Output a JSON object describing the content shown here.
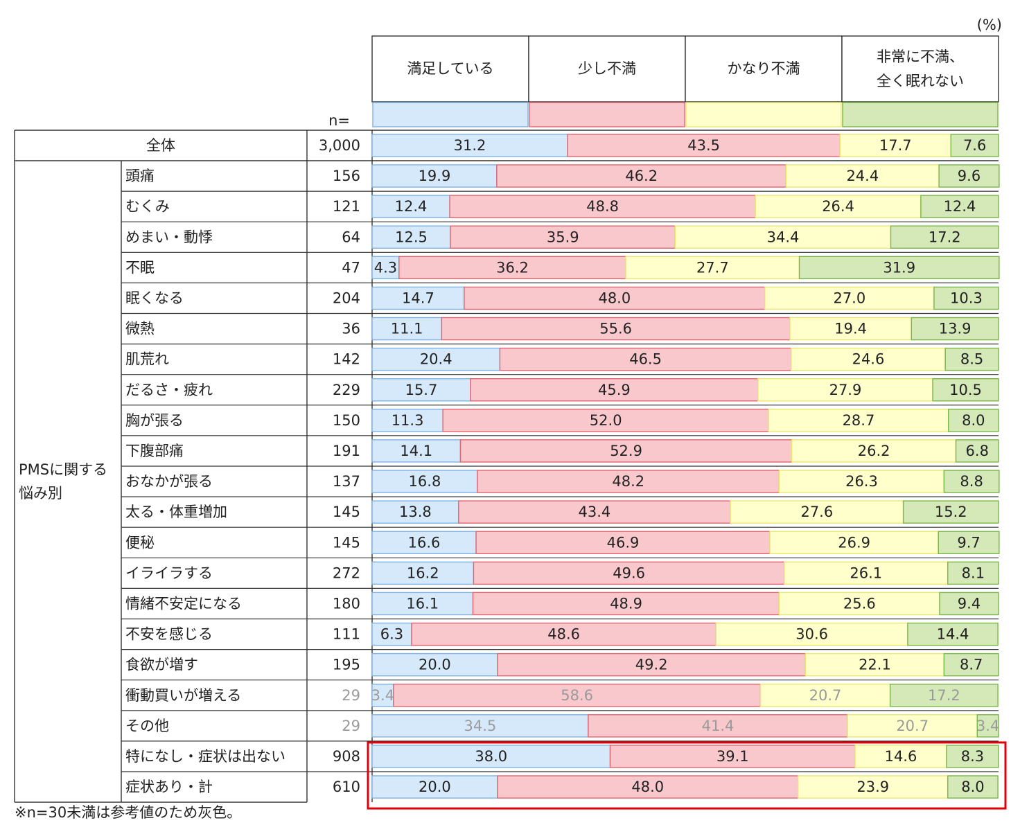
{
  "unit": "(%)",
  "n_label": "n=",
  "footnote": "※n=30未満は参考値のため灰色。",
  "group_label_lines": [
    "PMSに関する",
    "悩み別"
  ],
  "colors": {
    "satisfied": "#d6e9fb",
    "slightly": "#f9c8cd",
    "quite": "#ffffcc",
    "very": "#d4e8b8",
    "satisfied_edge": "#7fb2e5",
    "slightly_edge": "#e3636f",
    "quite_edge": "#e8e870",
    "very_edge": "#7ab648",
    "highlight": "#e0000a",
    "muted_text": "#9a9a9a"
  },
  "chart_data": {
    "type": "bar",
    "orientation": "horizontal",
    "stacked": true,
    "xlim": [
      0,
      100
    ],
    "series": [
      {
        "name": "満足している",
        "color": "#d6e9fb"
      },
      {
        "name": "少し不満",
        "color": "#f9c8cd"
      },
      {
        "name": "かなり不満",
        "color": "#ffffcc"
      },
      {
        "name": "非常に不満、全く眠れない",
        "color": "#d4e8b8"
      }
    ],
    "total_row": {
      "label": "全体",
      "n": "3,000",
      "values": [
        31.2,
        43.5,
        17.7,
        7.6
      ]
    },
    "rows": [
      {
        "label": "頭痛",
        "n": "156",
        "values": [
          19.9,
          46.2,
          24.4,
          9.6
        ]
      },
      {
        "label": "むくみ",
        "n": "121",
        "values": [
          12.4,
          48.8,
          26.4,
          12.4
        ]
      },
      {
        "label": "めまい・動悸",
        "n": "64",
        "values": [
          12.5,
          35.9,
          34.4,
          17.2
        ]
      },
      {
        "label": "不眠",
        "n": "47",
        "values": [
          4.3,
          36.2,
          27.7,
          31.9
        ]
      },
      {
        "label": "眠くなる",
        "n": "204",
        "values": [
          14.7,
          48.0,
          27.0,
          10.3
        ]
      },
      {
        "label": "微熱",
        "n": "36",
        "values": [
          11.1,
          55.6,
          19.4,
          13.9
        ]
      },
      {
        "label": "肌荒れ",
        "n": "142",
        "values": [
          20.4,
          46.5,
          24.6,
          8.5
        ]
      },
      {
        "label": "だるさ・疲れ",
        "n": "229",
        "values": [
          15.7,
          45.9,
          27.9,
          10.5
        ]
      },
      {
        "label": "胸が張る",
        "n": "150",
        "values": [
          11.3,
          52.0,
          28.7,
          8.0
        ]
      },
      {
        "label": "下腹部痛",
        "n": "191",
        "values": [
          14.1,
          52.9,
          26.2,
          6.8
        ]
      },
      {
        "label": "おなかが張る",
        "n": "137",
        "values": [
          16.8,
          48.2,
          26.3,
          8.8
        ]
      },
      {
        "label": "太る・体重増加",
        "n": "145",
        "values": [
          13.8,
          43.4,
          27.6,
          15.2
        ]
      },
      {
        "label": "便秘",
        "n": "145",
        "values": [
          16.6,
          46.9,
          26.9,
          9.7
        ]
      },
      {
        "label": "イライラする",
        "n": "272",
        "values": [
          16.2,
          49.6,
          26.1,
          8.1
        ]
      },
      {
        "label": "情緒不安定になる",
        "n": "180",
        "values": [
          16.1,
          48.9,
          25.6,
          9.4
        ]
      },
      {
        "label": "不安を感じる",
        "n": "111",
        "values": [
          6.3,
          48.6,
          30.6,
          14.4
        ]
      },
      {
        "label": "食欲が増す",
        "n": "195",
        "values": [
          20.0,
          49.2,
          22.1,
          8.7
        ]
      },
      {
        "label": "衝動買いが増える",
        "n": "29",
        "values": [
          3.4,
          58.6,
          20.7,
          17.2
        ],
        "muted": true
      },
      {
        "label": "その他",
        "n": "29",
        "values": [
          34.5,
          41.4,
          20.7,
          3.4
        ],
        "muted": true
      },
      {
        "label": "特になし・症状は出ない",
        "n": "908",
        "values": [
          38.0,
          39.1,
          14.6,
          8.3
        ],
        "highlighted": true
      },
      {
        "label": "症状あり・計",
        "n": "610",
        "values": [
          20.0,
          48.0,
          23.9,
          8.0
        ],
        "highlighted": true
      }
    ]
  }
}
